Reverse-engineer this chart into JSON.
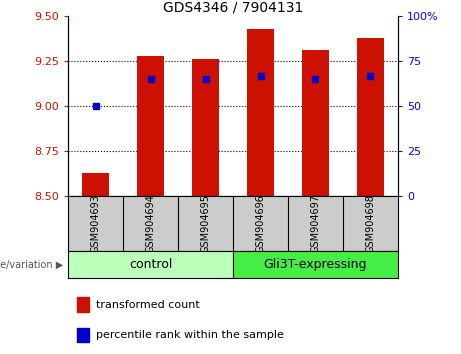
{
  "title": "GDS4346 / 7904131",
  "samples": [
    "GSM904693",
    "GSM904694",
    "GSM904695",
    "GSM904696",
    "GSM904697",
    "GSM904698"
  ],
  "transformed_counts": [
    8.63,
    9.28,
    9.26,
    9.43,
    9.31,
    9.38
  ],
  "percentile_ranks": [
    50,
    65,
    65,
    67,
    65,
    67
  ],
  "ylim_left": [
    8.5,
    9.5
  ],
  "ylim_right": [
    0,
    100
  ],
  "yticks_left": [
    8.5,
    8.75,
    9.0,
    9.25,
    9.5
  ],
  "yticks_right": [
    0,
    25,
    50,
    75,
    100
  ],
  "bar_color": "#CC1100",
  "dot_color": "#0000CC",
  "control_color": "#BBFFBB",
  "gli3t_color": "#44EE44",
  "sample_bg_color": "#CCCCCC",
  "fig_bg_color": "#FFFFFF",
  "plot_bg": "#FFFFFF",
  "left_tick_color": "#CC1100",
  "right_tick_color": "#0000FF",
  "grid_yticks": [
    8.75,
    9.0,
    9.25
  ],
  "bar_width": 0.5,
  "title_fontsize": 10,
  "tick_fontsize": 8,
  "sample_fontsize": 7,
  "group_fontsize": 9,
  "legend_fontsize": 8
}
